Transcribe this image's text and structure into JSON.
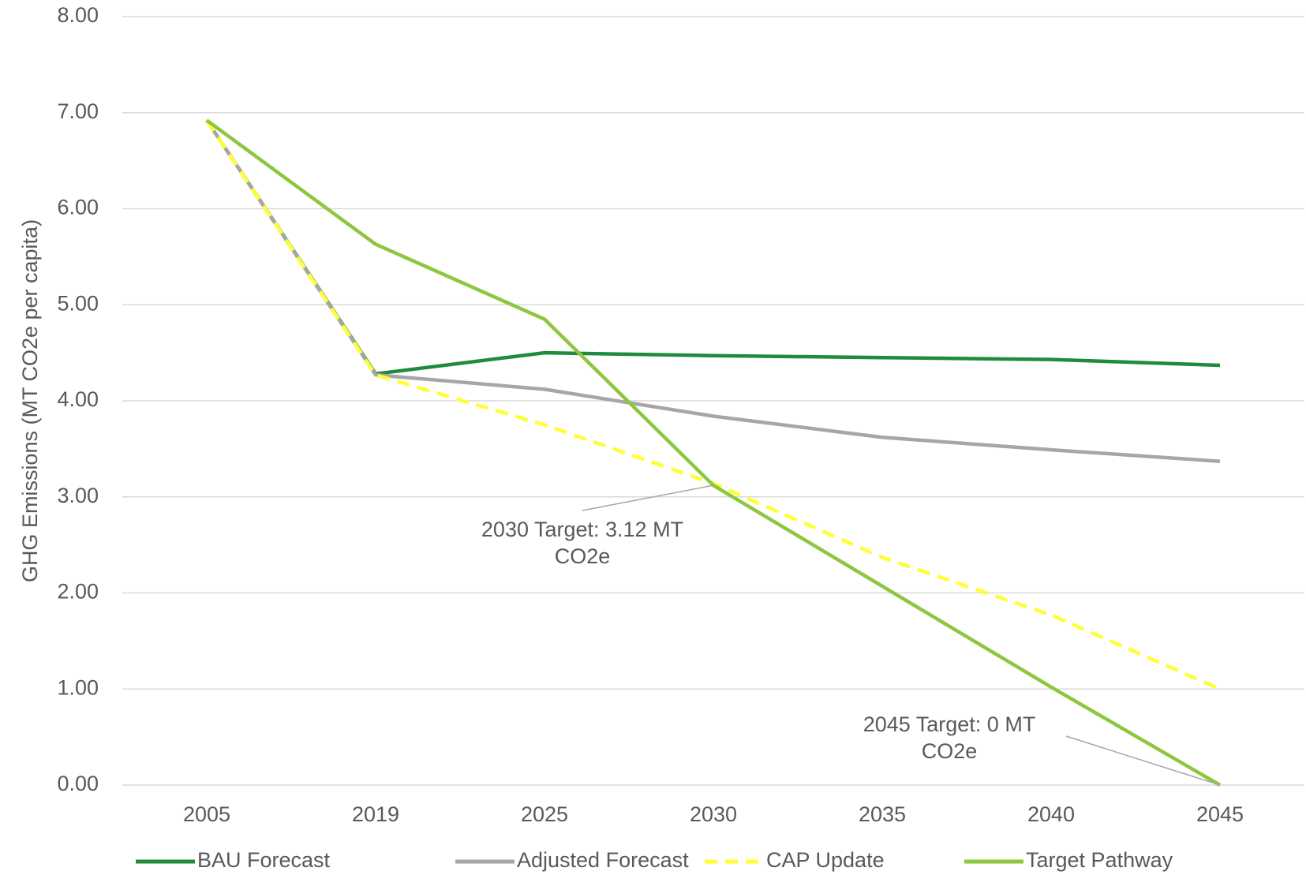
{
  "chart_data": {
    "type": "line",
    "y_axis_label": "GHG Emissions (MT CO2e per capita)",
    "categories": [
      "2005",
      "2019",
      "2025",
      "2030",
      "2035",
      "2040",
      "2045"
    ],
    "series": [
      {
        "name": "BAU Forecast",
        "color": "#1e8c3a",
        "dashed": false,
        "values": [
          6.92,
          4.28,
          4.5,
          4.47,
          4.45,
          4.43,
          4.37
        ]
      },
      {
        "name": "Adjusted Forecast",
        "color": "#a6a6a6",
        "dashed": false,
        "values": [
          6.92,
          4.27,
          4.12,
          3.84,
          3.62,
          3.49,
          3.37
        ]
      },
      {
        "name": "CAP Update",
        "color": "#ffff33",
        "dashed": true,
        "values": [
          6.92,
          4.27,
          3.75,
          3.14,
          2.37,
          1.77,
          1.0
        ]
      },
      {
        "name": "Target Pathway",
        "color": "#8dc63f",
        "dashed": false,
        "values": [
          6.92,
          5.63,
          4.85,
          3.12,
          2.07,
          1.02,
          0.0
        ]
      }
    ],
    "annotations": [
      {
        "lines": [
          "2030 Target: 3.12 MT",
          "CO2e"
        ]
      },
      {
        "lines": [
          "2045 Target: 0 MT",
          "CO2e"
        ]
      }
    ],
    "ylim": [
      0,
      8
    ],
    "yticks": [
      {
        "value": 0,
        "label": "0.00"
      },
      {
        "value": 1,
        "label": "1.00"
      },
      {
        "value": 2,
        "label": "2.00"
      },
      {
        "value": 3,
        "label": "3.00"
      },
      {
        "value": 4,
        "label": "4.00"
      },
      {
        "value": 5,
        "label": "5.00"
      },
      {
        "value": 6,
        "label": "6.00"
      },
      {
        "value": 7,
        "label": "7.00"
      },
      {
        "value": 8,
        "label": "8.00"
      }
    ],
    "grid": true,
    "legend": "bottom"
  }
}
